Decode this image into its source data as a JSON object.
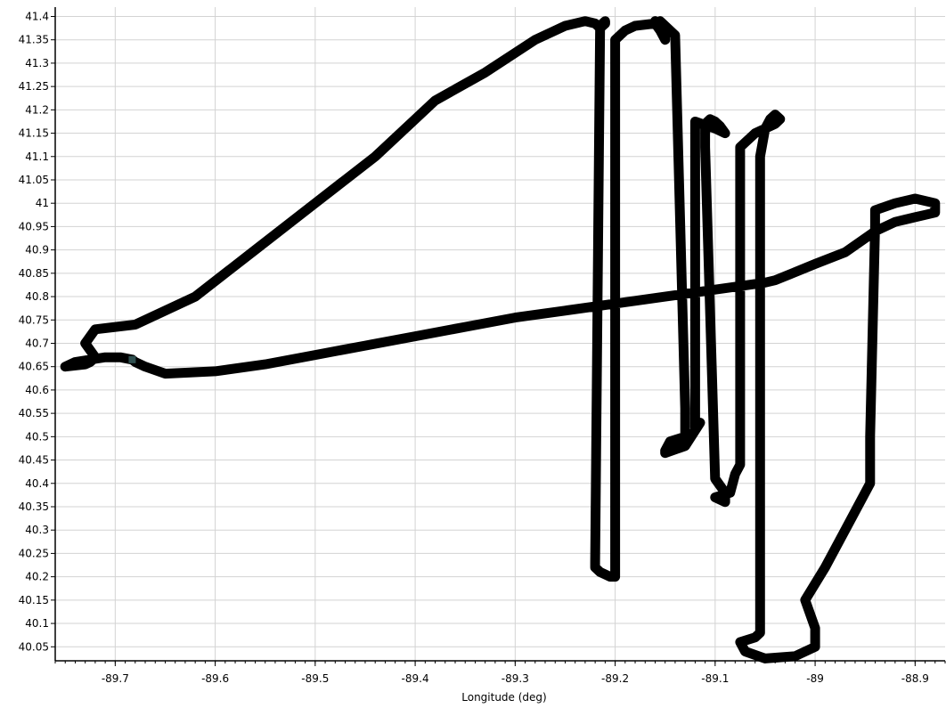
{
  "chart_data": {
    "type": "line",
    "title": "",
    "xlabel": "Longitude (deg)",
    "ylabel": "",
    "xlim": [
      -89.76,
      -88.87
    ],
    "ylim": [
      40.02,
      41.42
    ],
    "grid": true,
    "legend": "none",
    "x_ticks": [
      -89.7,
      -89.6,
      -89.5,
      -89.4,
      -89.3,
      -89.2,
      -89.1,
      -89.0,
      -88.9
    ],
    "x_tick_labels": [
      "-89.7",
      "-89.6",
      "-89.5",
      "-89.4",
      "-89.3",
      "-89.2",
      "-89.1",
      "-89",
      "-88.9"
    ],
    "y_ticks": [
      40.05,
      40.1,
      40.15,
      40.2,
      40.25,
      40.3,
      40.35,
      40.4,
      40.45,
      40.5,
      40.55,
      40.6,
      40.65,
      40.7,
      40.75,
      40.8,
      40.85,
      40.9,
      40.95,
      41.0,
      41.05,
      41.1,
      41.15,
      41.2,
      41.25,
      41.3,
      41.35,
      41.4
    ],
    "y_tick_labels": [
      "40.05",
      "40.1",
      "40.15",
      "40.2",
      "40.25",
      "40.3",
      "40.35",
      "40.4",
      "40.45",
      "40.5",
      "40.55",
      "40.6",
      "40.65",
      "40.7",
      "40.75",
      "40.8",
      "40.85",
      "40.9",
      "40.95",
      "41",
      "41.05",
      "41.1",
      "41.15",
      "41.2",
      "41.25",
      "41.3",
      "41.35",
      "41.4"
    ],
    "series": [
      {
        "color": "#000000",
        "x": [
          -89.683,
          -89.68,
          -89.67,
          -89.65,
          -89.6,
          -89.55,
          -89.5,
          -89.45,
          -89.4,
          -89.35,
          -89.3,
          -89.25,
          -89.2,
          -89.15,
          -89.1,
          -89.05,
          -89.04,
          -89.0,
          -88.97,
          -88.94,
          -88.92,
          -88.9,
          -88.89,
          -88.88,
          -88.88,
          -88.9,
          -88.92,
          -88.94,
          -88.94,
          -88.945,
          -88.945,
          -88.97,
          -88.99,
          -89.01,
          -89.0,
          -89.0,
          -89.02,
          -89.05,
          -89.07,
          -89.075,
          -89.06,
          -89.055,
          -89.055,
          -89.05,
          -89.045,
          -89.04,
          -89.035,
          -89.04,
          -89.06,
          -89.07,
          -89.075,
          -89.075,
          -89.08,
          -89.085,
          -89.1,
          -89.09,
          -89.09,
          -89.1,
          -89.11,
          -89.11,
          -89.105,
          -89.1,
          -89.095,
          -89.09,
          -89.1,
          -89.12,
          -89.12,
          -89.115,
          -89.13,
          -89.15,
          -89.15,
          -89.145,
          -89.13,
          -89.13,
          -89.13,
          -89.14,
          -89.15,
          -89.16,
          -89.16,
          -89.155,
          -89.15,
          -89.15,
          -89.155,
          -89.16,
          -89.18,
          -89.19,
          -89.2,
          -89.2,
          -89.205,
          -89.21,
          -89.215,
          -89.22,
          -89.22,
          -89.215,
          -89.21,
          -89.21,
          -89.215,
          -89.22,
          -89.23,
          -89.25,
          -89.28,
          -89.33,
          -89.38,
          -89.44,
          -89.5,
          -89.56,
          -89.62,
          -89.68,
          -89.72,
          -89.73,
          -89.72,
          -89.725,
          -89.73,
          -89.75,
          -89.74,
          -89.71,
          -89.695,
          -89.683
        ],
        "y": [
          40.665,
          40.66,
          40.65,
          40.635,
          40.64,
          40.655,
          40.675,
          40.695,
          40.715,
          40.735,
          40.755,
          40.77,
          40.785,
          40.8,
          40.815,
          40.83,
          40.835,
          40.87,
          40.895,
          40.94,
          40.96,
          40.97,
          40.975,
          40.98,
          41.0,
          41.01,
          41.0,
          40.985,
          40.95,
          40.5,
          40.4,
          40.3,
          40.22,
          40.15,
          40.09,
          40.05,
          40.03,
          40.025,
          40.04,
          40.06,
          40.07,
          40.08,
          41.1,
          41.16,
          41.18,
          41.19,
          41.18,
          41.17,
          41.15,
          41.13,
          41.12,
          40.44,
          40.42,
          40.38,
          40.37,
          40.36,
          40.38,
          40.41,
          41.12,
          41.17,
          41.18,
          41.175,
          41.165,
          41.15,
          41.16,
          41.175,
          40.52,
          40.53,
          40.48,
          40.465,
          40.47,
          40.49,
          40.5,
          40.52,
          40.56,
          41.36,
          41.38,
          41.39,
          41.385,
          41.37,
          41.35,
          41.38,
          41.39,
          41.385,
          41.38,
          41.37,
          41.35,
          40.2,
          40.2,
          40.205,
          40.21,
          40.22,
          40.23,
          41.38,
          41.39,
          41.385,
          41.375,
          41.385,
          41.39,
          41.38,
          41.35,
          41.28,
          41.22,
          41.1,
          41.0,
          40.9,
          40.8,
          40.74,
          40.73,
          40.7,
          40.67,
          40.66,
          40.655,
          40.65,
          40.66,
          40.67,
          40.67,
          40.665
        ]
      }
    ],
    "marker": {
      "x": -89.683,
      "y": 40.665,
      "color": "#2f4f4f"
    }
  }
}
